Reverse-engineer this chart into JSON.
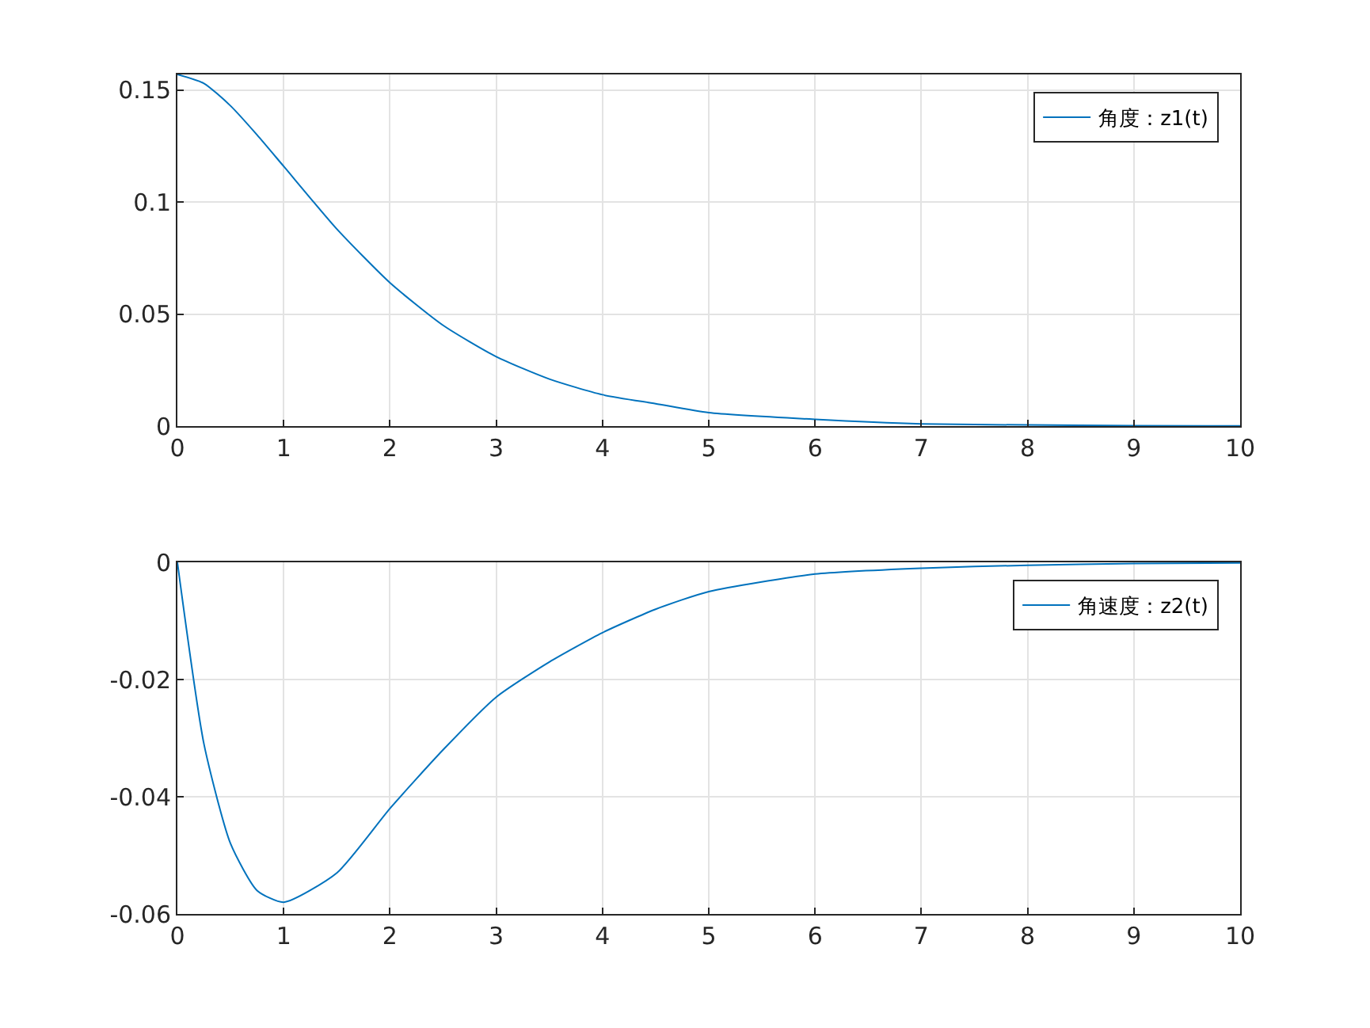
{
  "chart_data": [
    {
      "type": "line",
      "x": [
        0,
        0.25,
        0.5,
        0.75,
        1,
        1.5,
        2,
        2.5,
        3,
        3.5,
        4,
        4.5,
        5,
        6,
        7,
        8,
        9,
        10
      ],
      "series": [
        {
          "name": "角度：z1(t)",
          "color": "#0072bd",
          "values": [
            0.157,
            0.153,
            0.143,
            0.13,
            0.116,
            0.088,
            0.064,
            0.045,
            0.031,
            0.021,
            0.014,
            0.01,
            0.006,
            0.003,
            0.001,
            0.0005,
            0.0002,
            0.0001
          ]
        }
      ],
      "xlim": [
        0,
        10
      ],
      "xticks": [
        0,
        1,
        2,
        3,
        4,
        5,
        6,
        7,
        8,
        9,
        10
      ],
      "ylim": [
        0,
        0.157
      ],
      "yticks": [
        0,
        0.05,
        0.1,
        0.15
      ],
      "grid": true,
      "legend": "top right"
    },
    {
      "type": "line",
      "x": [
        0,
        0.25,
        0.5,
        0.75,
        1,
        1.5,
        2,
        2.5,
        3,
        3.5,
        4,
        4.5,
        5,
        6,
        7,
        8,
        9,
        10
      ],
      "series": [
        {
          "name": "角速度：z2(t)",
          "color": "#0072bd",
          "values": [
            0,
            -0.031,
            -0.048,
            -0.056,
            -0.058,
            -0.053,
            -0.042,
            -0.032,
            -0.023,
            -0.017,
            -0.012,
            -0.008,
            -0.005,
            -0.002,
            -0.001,
            -0.0005,
            -0.0002,
            -0.0001
          ]
        }
      ],
      "xlim": [
        0,
        10
      ],
      "xticks": [
        0,
        1,
        2,
        3,
        4,
        5,
        6,
        7,
        8,
        9,
        10
      ],
      "ylim": [
        -0.06,
        0
      ],
      "yticks": [
        -0.06,
        -0.04,
        -0.02,
        0
      ],
      "grid": true,
      "legend": "top right"
    }
  ]
}
